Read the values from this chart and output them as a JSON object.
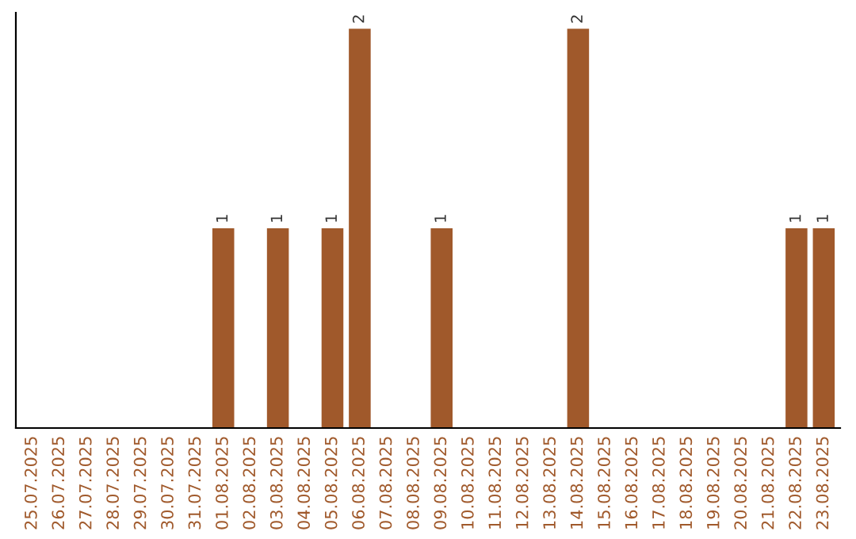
{
  "chart_data": {
    "type": "bar",
    "categories": [
      "25.07.2025",
      "26.07.2025",
      "27.07.2025",
      "28.07.2025",
      "29.07.2025",
      "30.07.2025",
      "31.07.2025",
      "01.08.2025",
      "02.08.2025",
      "03.08.2025",
      "04.08.2025",
      "05.08.2025",
      "06.08.2025",
      "07.08.2025",
      "08.08.2025",
      "09.08.2025",
      "10.08.2025",
      "11.08.2025",
      "12.08.2025",
      "13.08.2025",
      "14.08.2025",
      "15.08.2025",
      "16.08.2025",
      "17.08.2025",
      "18.08.2025",
      "19.08.2025",
      "20.08.2025",
      "21.08.2025",
      "22.08.2025",
      "23.08.2025"
    ],
    "values": [
      0,
      0,
      0,
      0,
      0,
      0,
      0,
      1,
      0,
      1,
      0,
      1,
      2,
      0,
      0,
      1,
      0,
      0,
      0,
      0,
      2,
      0,
      0,
      0,
      0,
      0,
      0,
      0,
      1,
      1
    ],
    "color": "#a0592b",
    "value_labels": [
      null,
      null,
      null,
      null,
      null,
      null,
      null,
      "1",
      null,
      "1",
      null,
      "1",
      "2",
      null,
      null,
      "1",
      null,
      null,
      null,
      null,
      "2",
      null,
      null,
      null,
      null,
      null,
      null,
      null,
      "1",
      "1"
    ],
    "tick_labels": "x",
    "grid": false,
    "legend": false
  }
}
